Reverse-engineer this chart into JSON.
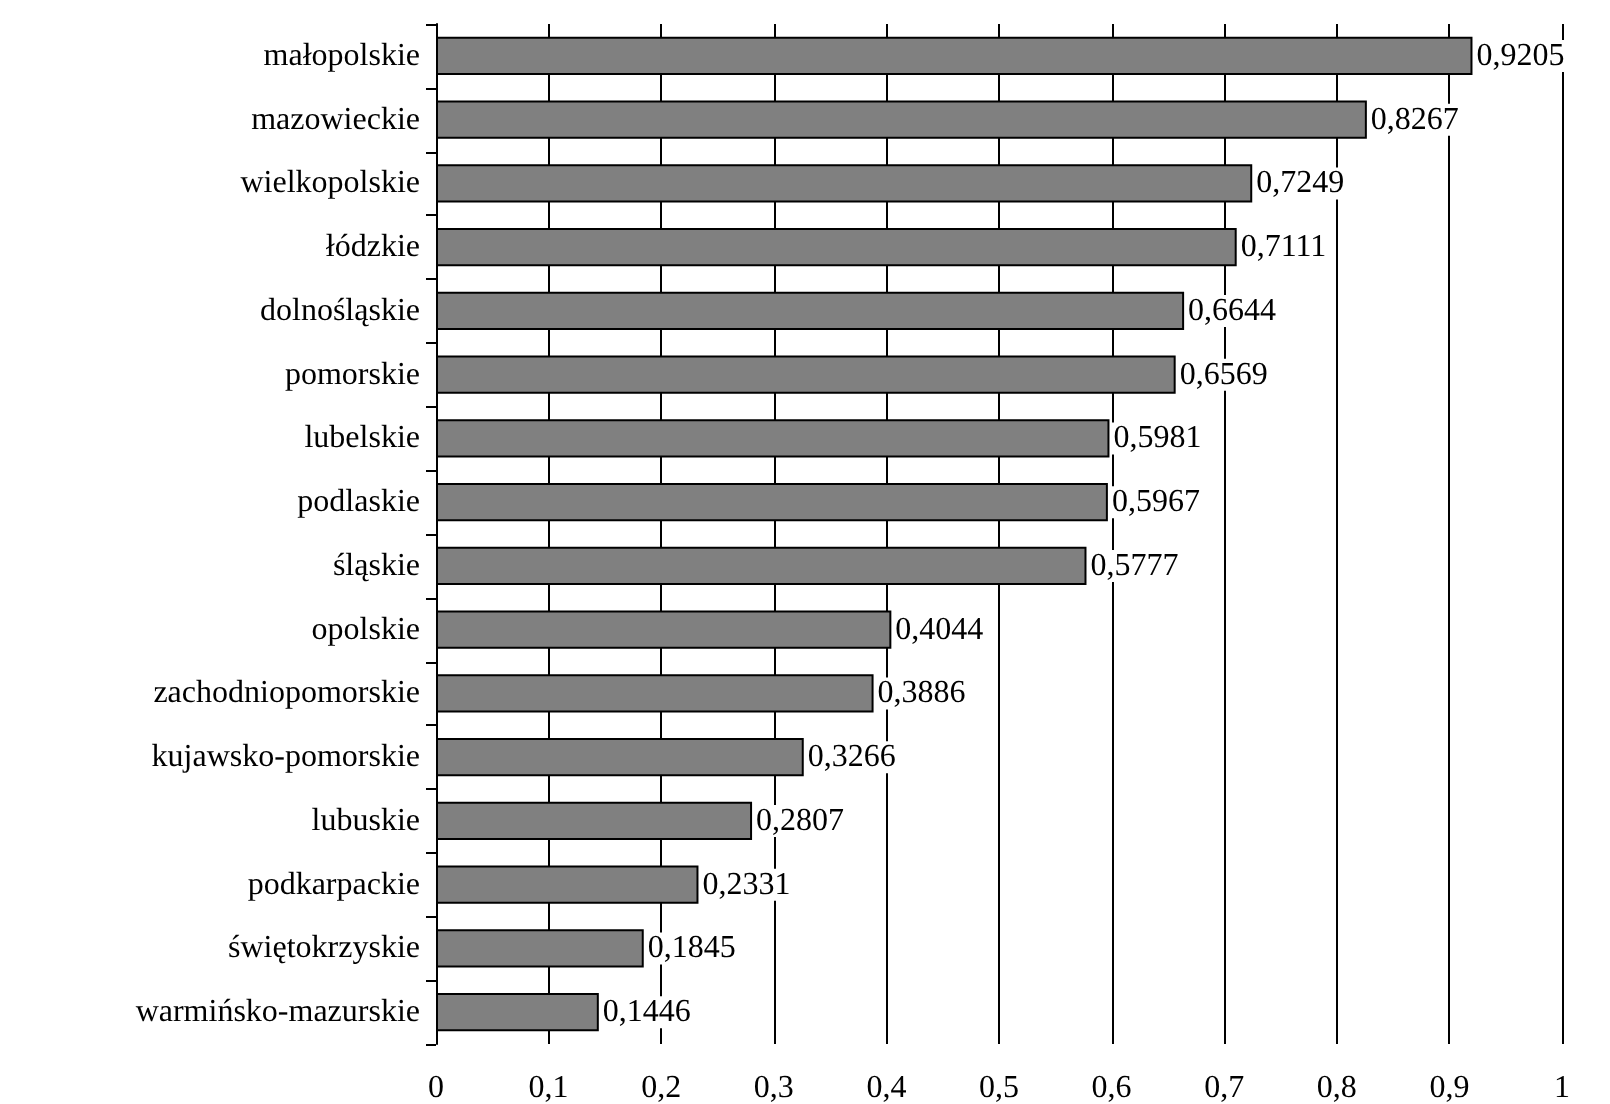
{
  "chart_data": {
    "type": "bar",
    "orientation": "horizontal",
    "categories": [
      "małopolskie",
      "mazowieckie",
      "wielkopolskie",
      "łódzkie",
      "dolnośląskie",
      "pomorskie",
      "lubelskie",
      "podlaskie",
      "śląskie",
      "opolskie",
      "zachodniopomorskie",
      "kujawsko-pomorskie",
      "lubuskie",
      "podkarpackie",
      "świętokrzyskie",
      "warmińsko-mazurskie"
    ],
    "values": [
      0.9205,
      0.8267,
      0.7249,
      0.7111,
      0.6644,
      0.6569,
      0.5981,
      0.5967,
      0.5777,
      0.4044,
      0.3886,
      0.3266,
      0.2807,
      0.2331,
      0.1845,
      0.1446
    ],
    "value_labels": [
      "0,9205",
      "0,8267",
      "0,7249",
      "0,7111",
      "0,6644",
      "0,6569",
      "0,5981",
      "0,5967",
      "0,5777",
      "0,4044",
      "0,3886",
      "0,3266",
      "0,2807",
      "0,2331",
      "0,1845",
      "0,1446"
    ],
    "color": "#808080",
    "xlim": [
      0,
      1
    ],
    "xticks": [
      0,
      {
        "value": 0.1,
        "label": "0,1"
      },
      {
        "value": 0.2,
        "label": "0,2"
      },
      {
        "value": 0.3,
        "label": "0,3"
      },
      {
        "value": 0.4,
        "label": "0,4"
      },
      {
        "value": 0.5,
        "label": "0,5"
      },
      {
        "value": 0.6,
        "label": "0,6"
      },
      {
        "value": 0.7,
        "label": "0,7"
      },
      {
        "value": 0.8,
        "label": "0,8"
      },
      {
        "value": 0.9,
        "label": "0,9"
      },
      1
    ],
    "grid": "x"
  }
}
